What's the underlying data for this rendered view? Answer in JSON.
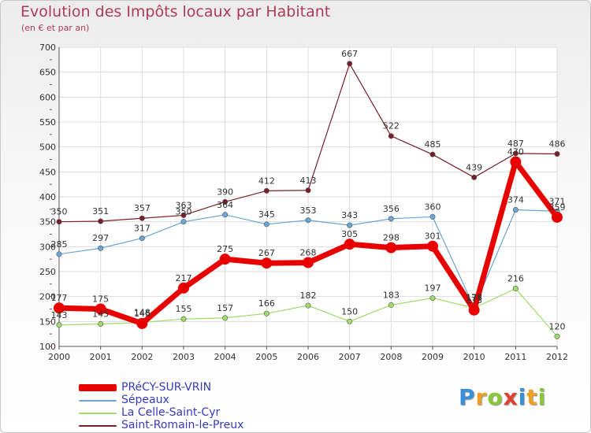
{
  "chart_data": {
    "type": "line",
    "title": "Evolution des Impôts locaux par Habitant",
    "subtitle": "(en € et par an)",
    "x": [
      "2000",
      "2001",
      "2002",
      "2003",
      "2004",
      "2005",
      "2006",
      "2007",
      "2008",
      "2009",
      "2010",
      "2011",
      "2012"
    ],
    "ylim": [
      100,
      700
    ],
    "yticks": [
      100,
      150,
      200,
      250,
      300,
      350,
      400,
      450,
      500,
      550,
      600,
      650,
      700
    ],
    "grid": true,
    "legend_position": "bottom-left",
    "series": [
      {
        "name": "PRéCY-SUR-VRIN",
        "color": "#e80000",
        "values": [
          177,
          175,
          146,
          217,
          275,
          267,
          268,
          305,
          298,
          301,
          173,
          470,
          359
        ]
      },
      {
        "name": "Sépeaux",
        "color": "#6aa5d6",
        "values": [
          285,
          297,
          317,
          350,
          364,
          345,
          353,
          343,
          356,
          360,
          178,
          374,
          371
        ]
      },
      {
        "name": "La Celle-Saint-Cyr",
        "color": "#9fdc6a",
        "values": [
          143,
          145,
          148,
          155,
          157,
          166,
          182,
          150,
          183,
          197,
          177,
          216,
          120
        ]
      },
      {
        "name": "Saint-Romain-le-Preux",
        "color": "#7a1f2a",
        "values": [
          350,
          351,
          357,
          363,
          390,
          412,
          413,
          667,
          522,
          485,
          439,
          487,
          486
        ]
      }
    ]
  },
  "logo": {
    "letters": [
      "P",
      "r",
      "o",
      "x",
      "i",
      "t",
      "i"
    ],
    "colors": [
      "#3a8fd9",
      "#f0a020",
      "#8ac83a",
      "#e04030",
      "#3a8fd9",
      "#f0a020",
      "#8ac83a"
    ]
  }
}
